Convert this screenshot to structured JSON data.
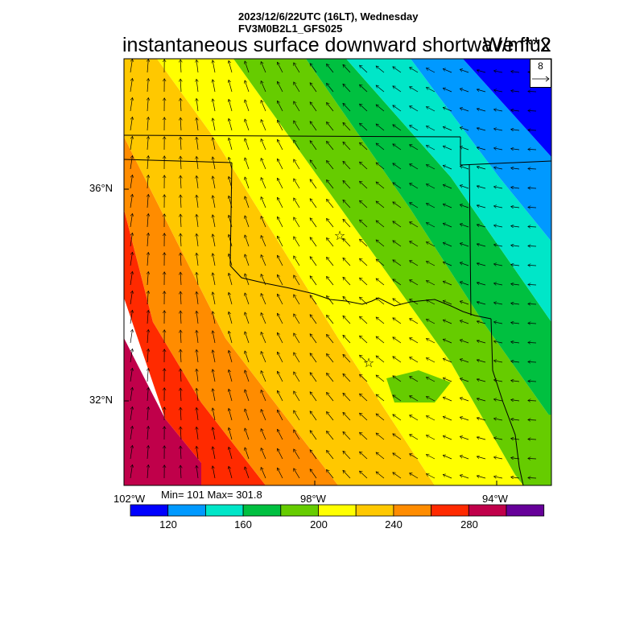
{
  "header": {
    "line1": "2023/12/6/22UTC (16LT), Wednesday",
    "line2": "FV3M0B2L1_GFS025",
    "title": "instantaneous surface downward shortwave flux",
    "units": "W/m**2"
  },
  "axes": {
    "lat_labels": [
      "36°N",
      "32°N"
    ],
    "lon_labels": [
      "102°W",
      "98°W",
      "94°W"
    ]
  },
  "stats": {
    "label": "Min= 101 Max= 301.8",
    "min": 101,
    "max": 301.8
  },
  "colorbar": {
    "colors": [
      "#0000ff",
      "#0099ff",
      "#00e6c8",
      "#00c040",
      "#66cc00",
      "#ffff00",
      "#ffc800",
      "#ff8c00",
      "#ff2a00",
      "#c0004a",
      "#660099"
    ],
    "tick_labels": [
      "120",
      "160",
      "200",
      "240",
      "280"
    ]
  },
  "wind_reference": {
    "value": "8"
  },
  "markers": [
    "star",
    "star"
  ]
}
